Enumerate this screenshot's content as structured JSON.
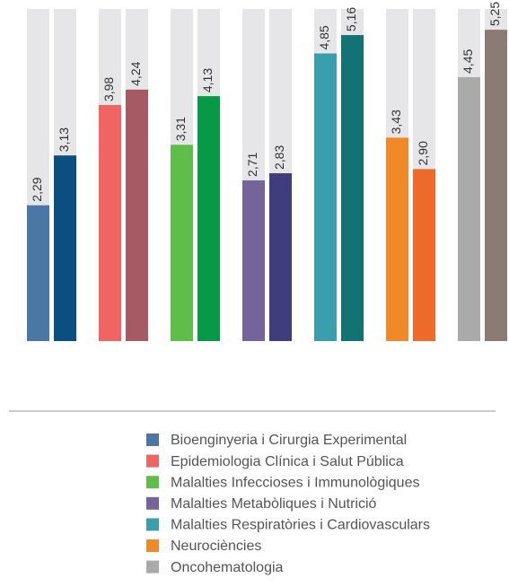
{
  "chart_data": {
    "type": "bar",
    "categories": [
      "Bioenginyeria i Cirurgia Experimental",
      "Epidemiologia Clínica i Salut Pública",
      "Malalties Infeccioses i Immunològiques",
      "Malalties Metabòliques i Nutrició",
      "Malalties Respiratòries i Cardiovasculars",
      "Neurociències",
      "Oncohematologia"
    ],
    "series": [
      {
        "colors": [
          "#4a77a4",
          "#f06464",
          "#5fbe4a",
          "#75649a",
          "#3a9eae",
          "#f08a28",
          "#aaaaaa"
        ],
        "values": [
          2.29,
          3.98,
          3.31,
          2.71,
          4.85,
          3.43,
          4.45
        ],
        "value_labels": [
          "2,29",
          "3,98",
          "3,31",
          "2,71",
          "4,85",
          "3,43",
          "4,45"
        ]
      },
      {
        "colors": [
          "#0b4f80",
          "#a65a63",
          "#069a48",
          "#3e3e7e",
          "#137274",
          "#ec6a2a",
          "#8a7c74"
        ],
        "values": [
          3.13,
          4.24,
          4.13,
          2.83,
          5.16,
          2.9,
          5.25
        ],
        "value_labels": [
          "3,13",
          "4,24",
          "4,13",
          "2,83",
          "5,16",
          "2,90",
          "5,25"
        ]
      }
    ],
    "ylim": [
      0,
      5.6
    ],
    "background_color": "#e6e6e8",
    "legend": "bottom"
  }
}
